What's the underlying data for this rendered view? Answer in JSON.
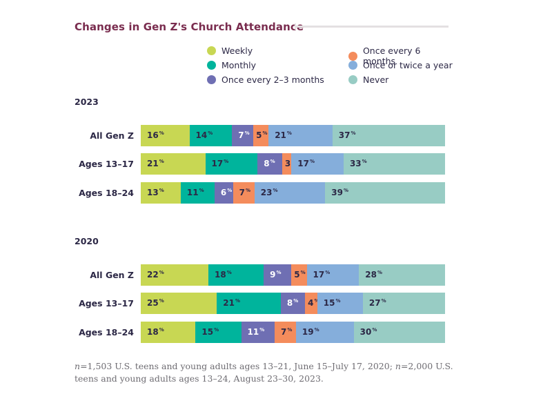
{
  "chart_data": {
    "type": "bar",
    "subtype": "stacked-horizontal-100",
    "title": "Changes in Gen Z's Church Attendance",
    "xlabel": "",
    "ylabel": "",
    "xlim": [
      0,
      100
    ],
    "grid": false,
    "legend_position": "top-right",
    "value_suffix": "%",
    "legend": [
      {
        "name": "Weekly",
        "color": "#c8d753"
      },
      {
        "name": "Monthly",
        "color": "#00b49c"
      },
      {
        "name": "Once every 2–3 months",
        "color": "#6f6fb3"
      },
      {
        "name": "Once every 6 months",
        "color": "#f48c5c"
      },
      {
        "name": "Once or twice a year",
        "color": "#85aedb"
      },
      {
        "name": "Never",
        "color": "#98ccc4"
      }
    ],
    "groups": [
      {
        "year": "2023",
        "categories": [
          "All Gen Z",
          "Ages 13–17",
          "Ages 18–24"
        ],
        "series": [
          {
            "name": "Weekly",
            "values": [
              16,
              21,
              13
            ]
          },
          {
            "name": "Monthly",
            "values": [
              14,
              17,
              11
            ]
          },
          {
            "name": "Once every 2–3 months",
            "values": [
              7,
              8,
              6
            ]
          },
          {
            "name": "Once every 6 months",
            "values": [
              5,
              3,
              7
            ]
          },
          {
            "name": "Once or twice a year",
            "values": [
              21,
              17,
              23
            ]
          },
          {
            "name": "Never",
            "values": [
              37,
              33,
              39
            ]
          }
        ]
      },
      {
        "year": "2020",
        "categories": [
          "All Gen Z",
          "Ages 13–17",
          "Ages 18–24"
        ],
        "series": [
          {
            "name": "Weekly",
            "values": [
              22,
              25,
              18
            ]
          },
          {
            "name": "Monthly",
            "values": [
              18,
              21,
              15
            ]
          },
          {
            "name": "Once every 2–3 months",
            "values": [
              9,
              8,
              11
            ]
          },
          {
            "name": "Once every 6 months",
            "values": [
              5,
              4,
              7
            ]
          },
          {
            "name": "Once or twice a year",
            "values": [
              17,
              15,
              19
            ]
          },
          {
            "name": "Never",
            "values": [
              28,
              27,
              30
            ]
          }
        ]
      }
    ]
  },
  "label_colors": {
    "Weekly": "#2c2846",
    "Monthly": "#2c2846",
    "Once every 2–3 months": "#ffffff",
    "Once every 6 months": "#2c2846",
    "Once or twice a year": "#2c2846",
    "Never": "#2c2846"
  },
  "note": "n=1,503 U.S. teens and young adults ages 13–21, June 15–July 17, 2020; n=2,000 U.S. teens and young adults ages 13–24, August 23–30, 2023."
}
